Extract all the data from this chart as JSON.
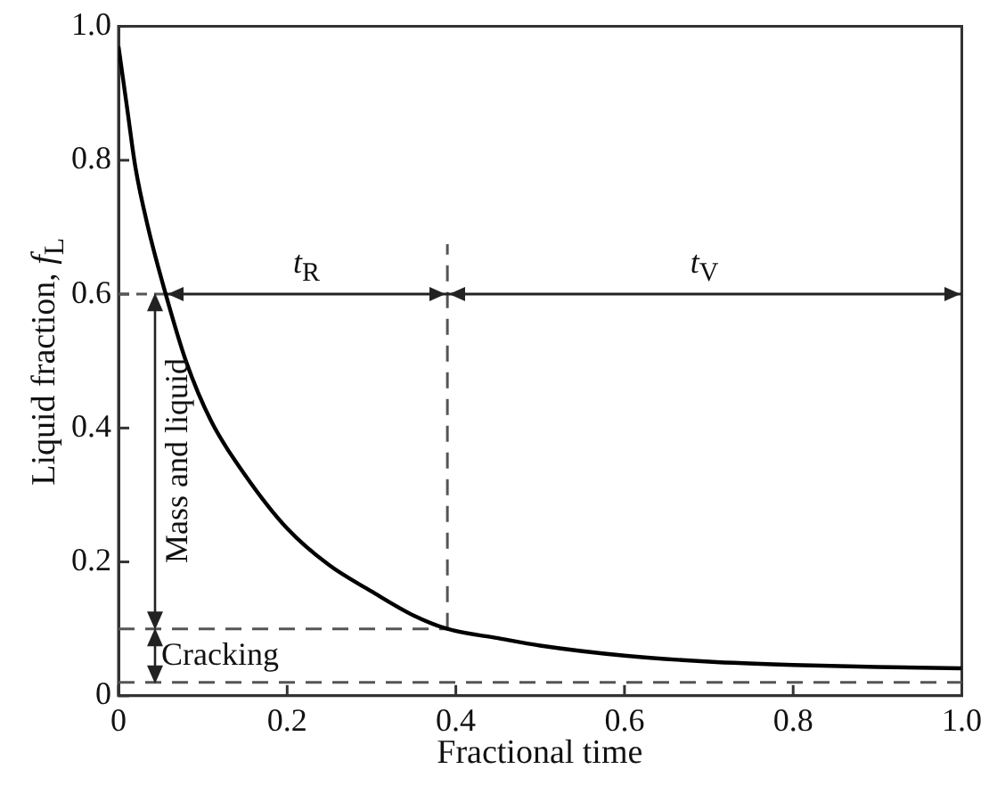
{
  "chart_data": {
    "type": "line",
    "xlabel": "Fractional time",
    "ylabel": "Liquid fraction, f$_{L}$",
    "x": [
      0,
      0.01,
      0.02,
      0.035,
      0.056,
      0.08,
      0.11,
      0.15,
      0.2,
      0.25,
      0.3,
      0.35,
      0.39,
      0.45,
      0.5,
      0.6,
      0.7,
      0.8,
      0.9,
      1.0
    ],
    "series": [
      {
        "color": "#000000",
        "values": [
          0.97,
          0.88,
          0.79,
          0.7,
          0.6,
          0.5,
          0.41,
          0.33,
          0.25,
          0.195,
          0.156,
          0.12,
          0.1,
          0.086,
          0.075,
          0.06,
          0.051,
          0.046,
          0.043,
          0.041
        ]
      }
    ],
    "xlim": [
      0,
      1
    ],
    "ylim": [
      0,
      1
    ],
    "xticks": [
      0,
      0.2,
      0.4,
      0.6,
      0.8,
      {
        "value": 1,
        "label": "1.0"
      }
    ],
    "yticks": [
      0,
      0.2,
      0.4,
      0.6,
      0.8,
      {
        "value": 1,
        "label": "1.0"
      }
    ],
    "ref_lines": [
      {
        "axis": "x",
        "value": 0.39,
        "color": "#555555",
        "line_style": "dashed"
      },
      {
        "axis": "y",
        "value": 0.6,
        "color": "#222222",
        "line_style": "solid"
      },
      {
        "axis": "y",
        "value": 0.1,
        "color": "#555555",
        "line_style": "dashed"
      },
      {
        "axis": "y",
        "value": 0.02,
        "color": "#555555",
        "line_style": "dashed"
      }
    ],
    "annotations": [
      "t$_{R}$",
      "t$_{V}$",
      "Mass and liquid",
      "Cracking"
    ],
    "grid": false,
    "legend": false,
    "marker": "none",
    "line_style": "solid"
  }
}
